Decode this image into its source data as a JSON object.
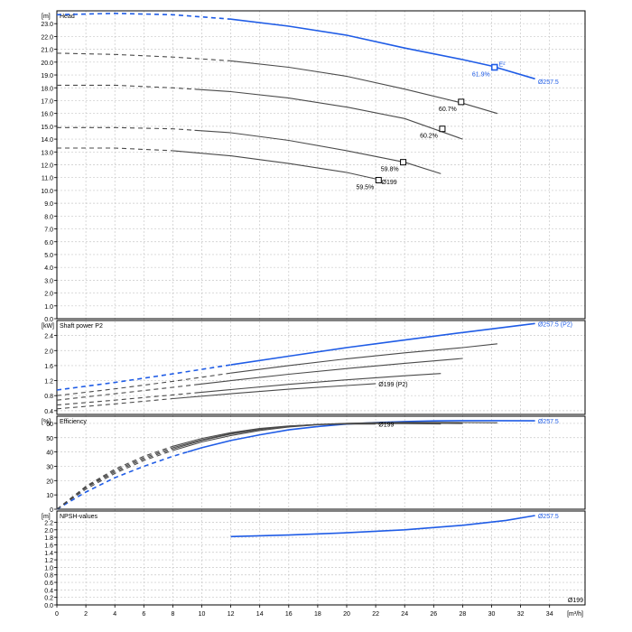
{
  "chart_data": {
    "type": "line",
    "x": {
      "unit": "[m³/h]",
      "range": [
        0,
        40
      ],
      "ticks": [
        0,
        2,
        4,
        6,
        8,
        10,
        12,
        14,
        16,
        18,
        20,
        22,
        24,
        26,
        28,
        30,
        32,
        34
      ],
      "end_label": "Ø199"
    },
    "colors": {
      "highlight": "#1f5ce6",
      "curve": "#4a4a4a",
      "grid": "#c8c8c8",
      "frame": "#000000"
    },
    "panels": [
      {
        "id": "head",
        "title": "Head",
        "unit": "[m]",
        "ylim": [
          0,
          24
        ],
        "yticks": [
          0,
          1,
          2,
          3,
          4,
          5,
          6,
          7,
          8,
          9,
          10,
          11,
          12,
          13,
          14,
          15,
          16,
          17,
          18,
          19,
          20,
          21,
          22,
          23
        ],
        "decimals": 1,
        "series": [
          {
            "name": "Ø257.5",
            "highlight": true,
            "dash_until": 12,
            "points": [
              [
                0,
                23.7
              ],
              [
                4,
                23.8
              ],
              [
                8,
                23.7
              ],
              [
                12,
                23.35
              ],
              [
                16,
                22.8
              ],
              [
                20,
                22.1
              ],
              [
                24,
                21.1
              ],
              [
                28,
                20.2
              ],
              [
                30,
                19.7
              ],
              [
                33,
                18.7
              ]
            ]
          },
          {
            "name": "",
            "highlight": false,
            "dash_until": 12,
            "points": [
              [
                0,
                20.7
              ],
              [
                4,
                20.6
              ],
              [
                8,
                20.4
              ],
              [
                12,
                20.1
              ],
              [
                16,
                19.6
              ],
              [
                20,
                18.9
              ],
              [
                24,
                17.9
              ],
              [
                28,
                16.8
              ],
              [
                30.4,
                16.0
              ]
            ]
          },
          {
            "name": "",
            "highlight": false,
            "dash_until": 9.5,
            "points": [
              [
                0,
                18.2
              ],
              [
                4,
                18.2
              ],
              [
                8,
                18.0
              ],
              [
                12,
                17.7
              ],
              [
                16,
                17.2
              ],
              [
                20,
                16.5
              ],
              [
                24,
                15.6
              ],
              [
                28,
                14.0
              ]
            ]
          },
          {
            "name": "",
            "highlight": false,
            "dash_until": 9.5,
            "points": [
              [
                0,
                14.9
              ],
              [
                4,
                14.9
              ],
              [
                8,
                14.8
              ],
              [
                12,
                14.5
              ],
              [
                16,
                13.9
              ],
              [
                20,
                13.1
              ],
              [
                24,
                12.2
              ],
              [
                26.5,
                11.3
              ]
            ]
          },
          {
            "name": "Ø199",
            "highlight": false,
            "dash_until": 8,
            "points": [
              [
                0,
                13.3
              ],
              [
                4,
                13.3
              ],
              [
                8,
                13.1
              ],
              [
                12,
                12.7
              ],
              [
                16,
                12.1
              ],
              [
                20,
                11.4
              ],
              [
                22,
                10.9
              ]
            ]
          }
        ],
        "markers": [
          {
            "x": 30.2,
            "y": 19.6,
            "label": "61.9%",
            "highlight": true
          },
          {
            "x": 27.9,
            "y": 16.9,
            "label": "60.7%",
            "highlight": false
          },
          {
            "x": 26.6,
            "y": 14.8,
            "label": "60.2%",
            "highlight": false
          },
          {
            "x": 23.9,
            "y": 12.2,
            "label": "59.8%",
            "highlight": false
          },
          {
            "x": 22.2,
            "y": 10.8,
            "label": "59.5%",
            "highlight": false
          }
        ],
        "annotations": [
          {
            "text": "E²",
            "x": 30.5,
            "y": 19.9,
            "highlight": true
          },
          {
            "text": "Ø257.5",
            "x": 33.2,
            "y": 18.5,
            "highlight": true
          },
          {
            "text": "Ø199",
            "x": 22.4,
            "y": 10.7,
            "highlight": false
          }
        ]
      },
      {
        "id": "power",
        "title": "Shaft power P2",
        "unit": "[kW]",
        "ylim": [
          0.3,
          2.8
        ],
        "yticks": [
          0.4,
          0.8,
          1.2,
          1.6,
          2.0,
          2.4
        ],
        "decimals": 1,
        "series": [
          {
            "name": "Ø257.5 (P2)",
            "highlight": true,
            "dash_until": 12,
            "points": [
              [
                0,
                0.95
              ],
              [
                4,
                1.15
              ],
              [
                8,
                1.38
              ],
              [
                12,
                1.62
              ],
              [
                16,
                1.85
              ],
              [
                20,
                2.08
              ],
              [
                24,
                2.28
              ],
              [
                28,
                2.48
              ],
              [
                33,
                2.72
              ]
            ]
          },
          {
            "name": "",
            "highlight": false,
            "dash_until": 12,
            "points": [
              [
                0,
                0.8
              ],
              [
                4,
                0.98
              ],
              [
                8,
                1.18
              ],
              [
                12,
                1.4
              ],
              [
                16,
                1.6
              ],
              [
                20,
                1.78
              ],
              [
                24,
                1.94
              ],
              [
                28,
                2.08
              ],
              [
                30.4,
                2.18
              ]
            ]
          },
          {
            "name": "",
            "highlight": false,
            "dash_until": 9.5,
            "points": [
              [
                0,
                0.68
              ],
              [
                4,
                0.85
              ],
              [
                8,
                1.02
              ],
              [
                12,
                1.2
              ],
              [
                16,
                1.37
              ],
              [
                20,
                1.52
              ],
              [
                24,
                1.66
              ],
              [
                28,
                1.79
              ]
            ]
          },
          {
            "name": "",
            "highlight": false,
            "dash_until": 9.5,
            "points": [
              [
                0,
                0.55
              ],
              [
                4,
                0.68
              ],
              [
                8,
                0.82
              ],
              [
                12,
                0.96
              ],
              [
                16,
                1.1
              ],
              [
                20,
                1.22
              ],
              [
                24,
                1.33
              ],
              [
                26.5,
                1.39
              ]
            ]
          },
          {
            "name": "Ø199 (P2)",
            "highlight": false,
            "dash_until": 8,
            "points": [
              [
                0,
                0.45
              ],
              [
                4,
                0.58
              ],
              [
                8,
                0.72
              ],
              [
                12,
                0.85
              ],
              [
                16,
                0.97
              ],
              [
                20,
                1.07
              ],
              [
                22,
                1.12
              ]
            ]
          }
        ],
        "markers": [],
        "annotations": [
          {
            "text": "Ø257.5 (P2)",
            "x": 33.2,
            "y": 2.72,
            "highlight": true
          },
          {
            "text": "Ø199 (P2)",
            "x": 22.2,
            "y": 1.12,
            "highlight": false
          }
        ]
      },
      {
        "id": "efficiency",
        "title": "Efficiency",
        "unit": "[%]",
        "ylim": [
          0,
          65
        ],
        "yticks": [
          0,
          10,
          20,
          30,
          40,
          50,
          60
        ],
        "decimals": 0,
        "series": [
          {
            "name": "Ø257.5",
            "highlight": true,
            "dash_until": 9,
            "points": [
              [
                0,
                0
              ],
              [
                2,
                12
              ],
              [
                4,
                22
              ],
              [
                6,
                30
              ],
              [
                8,
                37
              ],
              [
                10,
                43
              ],
              [
                12,
                48
              ],
              [
                14,
                52
              ],
              [
                16,
                55.5
              ],
              [
                18,
                57.8
              ],
              [
                20,
                59.5
              ],
              [
                22,
                60.6
              ],
              [
                24,
                61.3
              ],
              [
                26,
                61.7
              ],
              [
                28,
                61.9
              ],
              [
                30,
                61.9
              ],
              [
                33,
                61.8
              ]
            ]
          },
          {
            "name": "",
            "highlight": false,
            "dash_until": 8,
            "points": [
              [
                0,
                0
              ],
              [
                2,
                14
              ],
              [
                4,
                25
              ],
              [
                6,
                34
              ],
              [
                8,
                41
              ],
              [
                10,
                47
              ],
              [
                12,
                51.5
              ],
              [
                14,
                55
              ],
              [
                16,
                57.5
              ],
              [
                18,
                59
              ],
              [
                20,
                60
              ],
              [
                22,
                60.5
              ],
              [
                24,
                60.7
              ],
              [
                26,
                60.7
              ],
              [
                28,
                60.6
              ],
              [
                30.4,
                60.4
              ]
            ]
          },
          {
            "name": "",
            "highlight": false,
            "dash_until": 8,
            "points": [
              [
                0,
                0
              ],
              [
                2,
                15
              ],
              [
                4,
                26
              ],
              [
                6,
                35
              ],
              [
                8,
                42
              ],
              [
                10,
                48
              ],
              [
                12,
                52.5
              ],
              [
                14,
                55.7
              ],
              [
                16,
                58
              ],
              [
                18,
                59.3
              ],
              [
                20,
                60
              ],
              [
                22,
                60.2
              ],
              [
                24,
                60.2
              ],
              [
                26,
                60.1
              ],
              [
                28,
                59.9
              ]
            ]
          },
          {
            "name": "",
            "highlight": false,
            "dash_until": 8,
            "points": [
              [
                0,
                0
              ],
              [
                2,
                15.5
              ],
              [
                4,
                27
              ],
              [
                6,
                36
              ],
              [
                8,
                43
              ],
              [
                10,
                48.5
              ],
              [
                12,
                53
              ],
              [
                14,
                56
              ],
              [
                16,
                58
              ],
              [
                18,
                59.2
              ],
              [
                20,
                59.7
              ],
              [
                22,
                59.8
              ],
              [
                24,
                59.8
              ],
              [
                26.5,
                59.6
              ]
            ]
          },
          {
            "name": "Ø199",
            "highlight": false,
            "dash_until": 8,
            "points": [
              [
                0,
                0
              ],
              [
                2,
                16
              ],
              [
                4,
                28
              ],
              [
                6,
                37
              ],
              [
                8,
                44
              ],
              [
                10,
                49.5
              ],
              [
                12,
                53.5
              ],
              [
                14,
                56.5
              ],
              [
                16,
                58.2
              ],
              [
                18,
                59.1
              ],
              [
                20,
                59.5
              ],
              [
                22,
                59.5
              ]
            ]
          }
        ],
        "markers": [],
        "annotations": [
          {
            "text": "Ø257.5",
            "x": 33.2,
            "y": 61.8,
            "highlight": true
          },
          {
            "text": "Ø199",
            "x": 22.2,
            "y": 59.5,
            "highlight": false
          }
        ]
      },
      {
        "id": "npsh",
        "title": "NPSH-values",
        "unit": "[m]",
        "ylim": [
          0,
          2.5
        ],
        "yticks": [
          0.0,
          0.2,
          0.4,
          0.6,
          0.8,
          1.0,
          1.2,
          1.4,
          1.6,
          1.8,
          2.0,
          2.2
        ],
        "decimals": 1,
        "series": [
          {
            "name": "Ø257.5",
            "highlight": true,
            "dash_until": 0,
            "points": [
              [
                12,
                1.82
              ],
              [
                16,
                1.86
              ],
              [
                20,
                1.92
              ],
              [
                24,
                2.0
              ],
              [
                28,
                2.12
              ],
              [
                31,
                2.25
              ],
              [
                33,
                2.38
              ]
            ]
          }
        ],
        "markers": [],
        "annotations": [
          {
            "text": "Ø257.5",
            "x": 33.2,
            "y": 2.38,
            "highlight": true
          }
        ]
      }
    ]
  }
}
